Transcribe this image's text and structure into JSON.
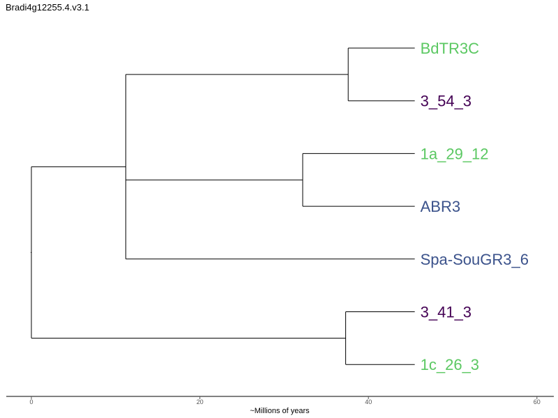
{
  "title": "Bradi4g12255.4.v3.1",
  "axis": {
    "label": "~Millions of years",
    "range": [
      -3,
      62
    ],
    "ticks": [
      0,
      20,
      40,
      60
    ],
    "tick_labels": [
      "0",
      "20",
      "40",
      "60"
    ]
  },
  "colors": {
    "green": "#5bc862",
    "purple": "#440154",
    "blue": "#3b528b"
  },
  "tree": {
    "id": "root",
    "time": 0,
    "children": [
      {
        "id": "n1",
        "time": 11.2,
        "children": [
          {
            "id": "n2",
            "time": 37.6,
            "children": [
              {
                "id": "leaf-BdTR3C",
                "label": "BdTR3C",
                "color": "#5bc862",
                "time": 45.5
              },
              {
                "id": "leaf-3_54_3",
                "label": "3_54_3",
                "color": "#440154",
                "time": 45.5
              }
            ]
          },
          {
            "id": "n3",
            "time": 32.2,
            "children": [
              {
                "id": "leaf-1a_29_12",
                "label": "1a_29_12",
                "color": "#5bc862",
                "time": 45.5
              },
              {
                "id": "leaf-ABR3",
                "label": "ABR3",
                "color": "#3b528b",
                "time": 45.5
              }
            ]
          },
          {
            "id": "leaf-Spa-SouGR3_6",
            "label": "Spa-SouGR3_6",
            "color": "#3b528b",
            "time": 45.5
          }
        ]
      },
      {
        "id": "n4",
        "time": 37.3,
        "children": [
          {
            "id": "leaf-3_41_3",
            "label": "3_41_3",
            "color": "#440154",
            "time": 45.5
          },
          {
            "id": "leaf-1c_26_3",
            "label": "1c_26_3",
            "color": "#5bc862",
            "time": 45.5
          }
        ]
      }
    ]
  }
}
